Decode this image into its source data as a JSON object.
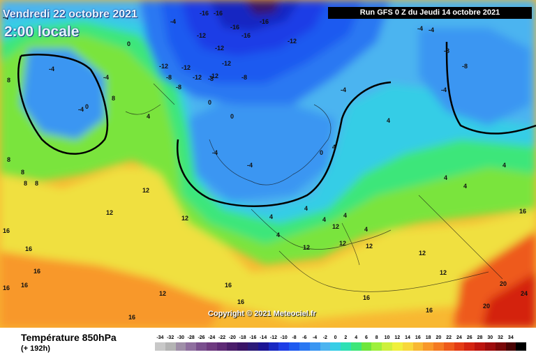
{
  "header": {
    "date_label": "Vendredi 22 octobre 2021",
    "time_label": "2:00 locale",
    "run_label": "Run GFS 0 Z du Jeudi 14 octobre 2021"
  },
  "copyright": "Copyright © 2021 Meteociel.fr",
  "legend": {
    "field_name": "Température 850hPa",
    "forecast_offset": "(+ 192h)",
    "scale": [
      {
        "value": "-34",
        "color": "#c8c8c8"
      },
      {
        "value": "-32",
        "color": "#b4b4b4"
      },
      {
        "value": "-30",
        "color": "#9f8fa8"
      },
      {
        "value": "-28",
        "color": "#8f6f9f"
      },
      {
        "value": "-26",
        "color": "#7a4f8e"
      },
      {
        "value": "-24",
        "color": "#6e3a80"
      },
      {
        "value": "-22",
        "color": "#5e2a76"
      },
      {
        "value": "-20",
        "color": "#4a1d6a"
      },
      {
        "value": "-18",
        "color": "#3a1466"
      },
      {
        "value": "-16",
        "color": "#2c1a78"
      },
      {
        "value": "-14",
        "color": "#1c1494"
      },
      {
        "value": "-12",
        "color": "#1828c2"
      },
      {
        "value": "-10",
        "color": "#1e3ee6"
      },
      {
        "value": "-8",
        "color": "#1e5af0"
      },
      {
        "value": "-6",
        "color": "#2a78f2"
      },
      {
        "value": "-4",
        "color": "#3a96f2"
      },
      {
        "value": "-2",
        "color": "#4cb4f0"
      },
      {
        "value": "0",
        "color": "#36cde6"
      },
      {
        "value": "2",
        "color": "#2ee0b4"
      },
      {
        "value": "4",
        "color": "#3ee67a"
      },
      {
        "value": "6",
        "color": "#6ee63c"
      },
      {
        "value": "8",
        "color": "#9ef03c"
      },
      {
        "value": "10",
        "color": "#cef03c"
      },
      {
        "value": "12",
        "color": "#f0f03c"
      },
      {
        "value": "14",
        "color": "#f8d83a"
      },
      {
        "value": "16",
        "color": "#f8b832"
      },
      {
        "value": "18",
        "color": "#f8982a"
      },
      {
        "value": "20",
        "color": "#f47a22"
      },
      {
        "value": "22",
        "color": "#ee5a1a"
      },
      {
        "value": "24",
        "color": "#e43c14"
      },
      {
        "value": "26",
        "color": "#d42410"
      },
      {
        "value": "28",
        "color": "#bc140e"
      },
      {
        "value": "30",
        "color": "#9e0c0c"
      },
      {
        "value": "32",
        "color": "#7a0808"
      },
      {
        "value": "34",
        "color": "#4a0404"
      },
      {
        "value": "",
        "color": "#000000"
      }
    ]
  },
  "map": {
    "isotherm_labels": [
      {
        "text": "-16"
      },
      {
        "text": "-16"
      },
      {
        "text": "-16"
      },
      {
        "text": "-16"
      },
      {
        "text": "-16"
      },
      {
        "text": "-12"
      },
      {
        "text": "-12"
      },
      {
        "text": "-12"
      },
      {
        "text": "-12"
      },
      {
        "text": "-12"
      },
      {
        "text": "-12"
      },
      {
        "text": "-12"
      },
      {
        "text": "-12"
      },
      {
        "text": "-8"
      },
      {
        "text": "-8"
      },
      {
        "text": "-8"
      },
      {
        "text": "-8"
      },
      {
        "text": "-8"
      },
      {
        "text": "-8"
      },
      {
        "text": "-4"
      },
      {
        "text": "-4"
      },
      {
        "text": "-4"
      },
      {
        "text": "-4"
      },
      {
        "text": "-4"
      },
      {
        "text": "-4"
      },
      {
        "text": "-4"
      },
      {
        "text": "-4"
      },
      {
        "text": "-4"
      },
      {
        "text": "-4"
      },
      {
        "text": "-4"
      },
      {
        "text": "0"
      },
      {
        "text": "0"
      },
      {
        "text": "0"
      },
      {
        "text": "0"
      },
      {
        "text": "0"
      },
      {
        "text": "4"
      },
      {
        "text": "4"
      },
      {
        "text": "4"
      },
      {
        "text": "4"
      },
      {
        "text": "4"
      },
      {
        "text": "4"
      },
      {
        "text": "4"
      },
      {
        "text": "4"
      },
      {
        "text": "4"
      },
      {
        "text": "4"
      },
      {
        "text": "4"
      },
      {
        "text": "4"
      },
      {
        "text": "8"
      },
      {
        "text": "8"
      },
      {
        "text": "8"
      },
      {
        "text": "8"
      },
      {
        "text": "8"
      },
      {
        "text": "8"
      },
      {
        "text": "12"
      },
      {
        "text": "12"
      },
      {
        "text": "12"
      },
      {
        "text": "12"
      },
      {
        "text": "12"
      },
      {
        "text": "12"
      },
      {
        "text": "12"
      },
      {
        "text": "12"
      },
      {
        "text": "12"
      },
      {
        "text": "12"
      },
      {
        "text": "16"
      },
      {
        "text": "16"
      },
      {
        "text": "16"
      },
      {
        "text": "16"
      },
      {
        "text": "16"
      },
      {
        "text": "16"
      },
      {
        "text": "16"
      },
      {
        "text": "16"
      },
      {
        "text": "16"
      },
      {
        "text": "16"
      },
      {
        "text": "16"
      },
      {
        "text": "20"
      },
      {
        "text": "20"
      },
      {
        "text": "24"
      }
    ]
  }
}
